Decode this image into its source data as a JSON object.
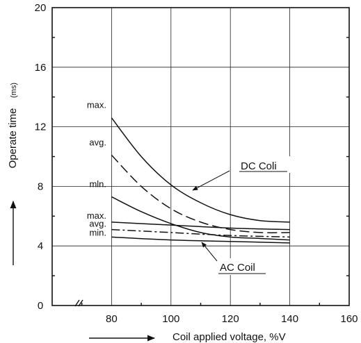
{
  "chart_data": {
    "type": "line",
    "xlabel": "Coil applied voltage, %V",
    "ylabel": "Operate time",
    "ylabel_unit": "(ms)",
    "xlim": [
      60,
      160
    ],
    "ylim": [
      0,
      20
    ],
    "x_ticks": [
      80,
      100,
      120,
      140,
      160
    ],
    "y_ticks": [
      0,
      4,
      8,
      12,
      16,
      20
    ],
    "x_tick_labels": [
      "80",
      "100",
      "120",
      "140",
      "160"
    ],
    "y_tick_labels": [
      "0",
      "4",
      "8",
      "12",
      "16",
      "20"
    ],
    "grid": true,
    "annotations": {
      "dc_label": "DC Coli",
      "ac_label": "AC Coil"
    },
    "series": [
      {
        "name": "max.",
        "group": "DC",
        "style": "solid",
        "x": [
          80,
          90,
          100,
          110,
          120,
          130,
          140
        ],
        "y": [
          12.6,
          10.0,
          8.1,
          6.9,
          6.1,
          5.7,
          5.6
        ]
      },
      {
        "name": "avg.",
        "group": "DC",
        "style": "dashed",
        "x": [
          80,
          90,
          100,
          110,
          120,
          130,
          140
        ],
        "y": [
          10.1,
          8.0,
          6.5,
          5.6,
          5.1,
          4.9,
          4.9
        ]
      },
      {
        "name": "mln.",
        "group": "DC",
        "style": "solid",
        "x": [
          80,
          90,
          100,
          110,
          120,
          130,
          140
        ],
        "y": [
          7.3,
          6.3,
          5.5,
          4.9,
          4.6,
          4.5,
          4.4
        ]
      },
      {
        "name": "max.",
        "group": "AC",
        "style": "solid",
        "x": [
          80,
          100,
          120,
          140
        ],
        "y": [
          5.6,
          5.4,
          5.2,
          5.1
        ]
      },
      {
        "name": "avg.",
        "group": "AC",
        "style": "dashed",
        "x": [
          80,
          100,
          120,
          140
        ],
        "y": [
          5.1,
          4.9,
          4.7,
          4.6
        ]
      },
      {
        "name": "min.",
        "group": "AC",
        "style": "solid",
        "x": [
          80,
          100,
          120,
          140
        ],
        "y": [
          4.6,
          4.4,
          4.3,
          4.2
        ]
      }
    ]
  }
}
